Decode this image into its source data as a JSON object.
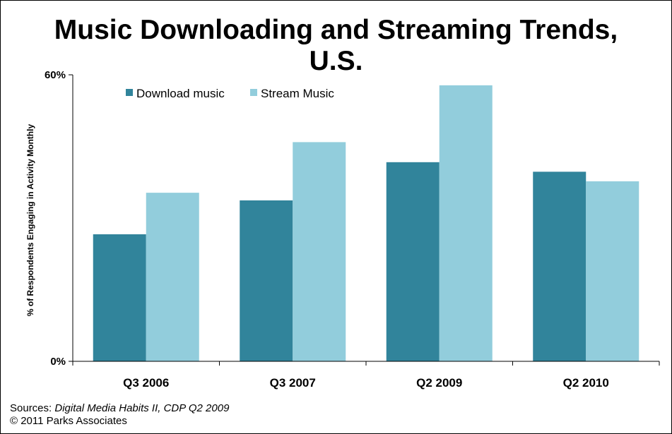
{
  "chart_data": {
    "type": "bar",
    "title_line1": "Music Downloading and Streaming Trends,",
    "title_line2": "U.S.",
    "ylabel": "% of Respondents Engaging in Activity Monthly",
    "xlabel": "",
    "categories": [
      "Q3 2006",
      "Q3 2007",
      "Q2 2009",
      "Q2 2010"
    ],
    "series": [
      {
        "name": "Download music",
        "color": "#31849B",
        "values": [
          26.6,
          33.7,
          41.7,
          39.7
        ]
      },
      {
        "name": "Stream Music",
        "color": "#92CDDC",
        "values": [
          35.3,
          45.9,
          57.8,
          37.7
        ]
      }
    ],
    "ylim": [
      0,
      60
    ],
    "y_tick_labels": [
      "0%",
      "60%"
    ],
    "grid": false,
    "legend_position": "top-left"
  },
  "footer": {
    "sources_prefix": "Sources: ",
    "sources_italic": "Digital Media Habits II,  CDP Q2 2009",
    "copyright": "© 2011 Parks Associates"
  }
}
